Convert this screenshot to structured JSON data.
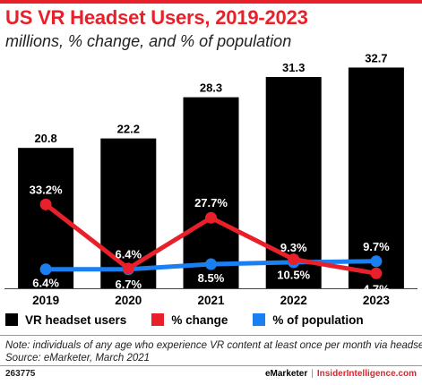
{
  "title": "US VR Headset Users, 2019-2023",
  "subtitle": "millions,  % change, and % of population",
  "colors": {
    "brand": "#e8202a",
    "bars": "#000000",
    "change": "#e8202a",
    "population": "#1a7ff0"
  },
  "chart_data": {
    "type": "bar",
    "categories": [
      "2019",
      "2020",
      "2021",
      "2022",
      "2023"
    ],
    "series": [
      {
        "name": "VR headset users",
        "type": "bar",
        "values": [
          20.8,
          22.2,
          28.3,
          31.3,
          32.7
        ],
        "labels": [
          "20.8",
          "22.2",
          "28.3",
          "31.3",
          "32.7"
        ]
      },
      {
        "name": "% change",
        "type": "line",
        "values": [
          33.2,
          6.7,
          27.7,
          10.5,
          4.7
        ],
        "labels": [
          "33.2%",
          "6.7%",
          "27.7%",
          "10.5%",
          "4.7%"
        ]
      },
      {
        "name": "% of population",
        "type": "line",
        "values": [
          6.4,
          6.4,
          8.5,
          9.3,
          9.7
        ],
        "labels": [
          "6.4%",
          "6.4%",
          "8.5%",
          "9.3%",
          "9.7%"
        ]
      }
    ],
    "ylim": [
      0,
      35
    ],
    "grid": false,
    "legend_position": "bottom"
  },
  "legend": [
    "VR headset users",
    "% change",
    "% of population"
  ],
  "note": "Note: individuals of any age who experience VR content at least once per month via headsets",
  "source": "Source: eMarketer, March 2021",
  "footer": {
    "id": "263775",
    "brand1": "eMarketer",
    "separator": "|",
    "brand2": "InsiderIntelligence.com"
  }
}
